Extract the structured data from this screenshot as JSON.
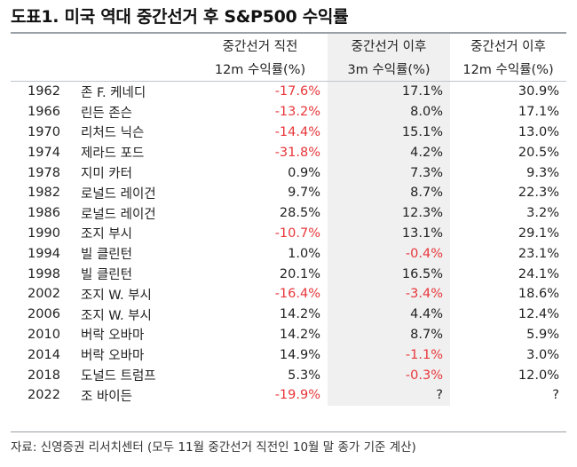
{
  "title": "도표1. 미국 역대 중간선거 후 S&P500 수익률",
  "headers": {
    "col1_line1": "중간선거 직전",
    "col1_line2": "12m 수익률(%)",
    "col2_line1": "중간선거 이후",
    "col2_line2": "3m 수익률(%)",
    "col3_line1": "중간선거 이후",
    "col3_line2": "12m 수익률(%)"
  },
  "rows": [
    {
      "year": "1962",
      "president": "존 F. 케네디",
      "pre12m": "-17.6%",
      "post3m": "17.1%",
      "post12m": "30.9%"
    },
    {
      "year": "1966",
      "president": "린든 존슨",
      "pre12m": "-13.2%",
      "post3m": "8.0%",
      "post12m": "17.1%"
    },
    {
      "year": "1970",
      "president": "리처드 닉슨",
      "pre12m": "-14.4%",
      "post3m": "15.1%",
      "post12m": "13.0%"
    },
    {
      "year": "1974",
      "president": "제라드 포드",
      "pre12m": "-31.8%",
      "post3m": "4.2%",
      "post12m": "20.5%"
    },
    {
      "year": "1978",
      "president": "지미 카터",
      "pre12m": "0.9%",
      "post3m": "7.3%",
      "post12m": "9.3%"
    },
    {
      "year": "1982",
      "president": "로널드 레이건",
      "pre12m": "9.7%",
      "post3m": "8.7%",
      "post12m": "22.3%"
    },
    {
      "year": "1986",
      "president": "로널드 레이건",
      "pre12m": "28.5%",
      "post3m": "12.3%",
      "post12m": "3.2%"
    },
    {
      "year": "1990",
      "president": "조지 부시",
      "pre12m": "-10.7%",
      "post3m": "13.1%",
      "post12m": "29.1%"
    },
    {
      "year": "1994",
      "president": "빌 클린턴",
      "pre12m": "1.0%",
      "post3m": "-0.4%",
      "post12m": "23.1%"
    },
    {
      "year": "1998",
      "president": "빌 클린턴",
      "pre12m": "20.1%",
      "post3m": "16.5%",
      "post12m": "24.1%"
    },
    {
      "year": "2002",
      "president": "조지 W. 부시",
      "pre12m": "-16.4%",
      "post3m": "-3.4%",
      "post12m": "18.6%"
    },
    {
      "year": "2006",
      "president": "조지 W. 부시",
      "pre12m": "14.2%",
      "post3m": "4.4%",
      "post12m": "12.4%"
    },
    {
      "year": "2010",
      "president": "버락 오바마",
      "pre12m": "14.2%",
      "post3m": "8.7%",
      "post12m": "5.9%"
    },
    {
      "year": "2014",
      "president": "버락 오바마",
      "pre12m": "14.9%",
      "post3m": "-1.1%",
      "post12m": "3.0%"
    },
    {
      "year": "2018",
      "president": "도널드 트럼프",
      "pre12m": "5.3%",
      "post3m": "-0.3%",
      "post12m": "12.0%"
    },
    {
      "year": "2022",
      "president": "조 바이든",
      "pre12m": "-19.9%",
      "post3m": "?",
      "post12m": "?"
    }
  ],
  "source": "자료: 신영증권 리서치센터 (모두 11월 중간선거 직전인 10월 말 종가 기준 계산)",
  "colors": {
    "negative": "#e8363a",
    "shade": "#f0f0f0"
  }
}
